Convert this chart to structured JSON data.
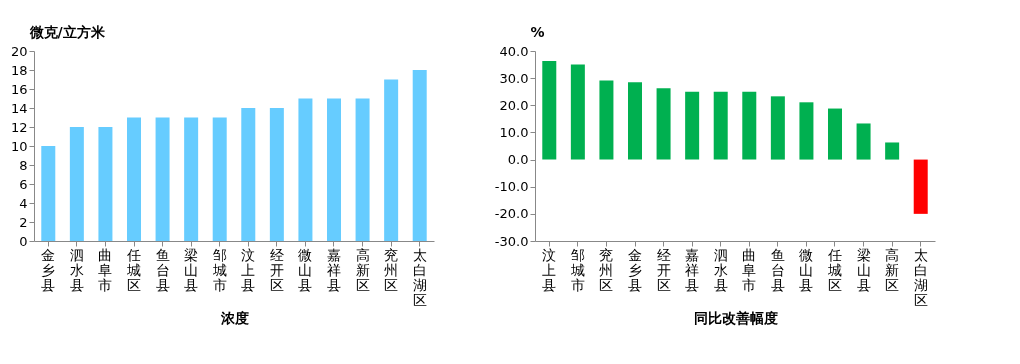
{
  "chart_data": [
    {
      "type": "bar",
      "ylabel": "微克/立方米",
      "xlabel": "浓度",
      "categories": [
        "金乡县",
        "泗水县",
        "曲阜市",
        "任城区",
        "鱼台县",
        "梁山县",
        "邹城市",
        "汶上县",
        "经开区",
        "微山县",
        "嘉祥县",
        "高新区",
        "兖州区",
        "太白湖区"
      ],
      "values": [
        10,
        12,
        12,
        13,
        13,
        13,
        13,
        14,
        14,
        15,
        15,
        15,
        17,
        18
      ],
      "color": "#66ccff",
      "ylim": [
        0,
        20
      ],
      "yticks": [
        0,
        2,
        4,
        6,
        8,
        10,
        12,
        14,
        16,
        18,
        20
      ],
      "grid": false,
      "legend": false
    },
    {
      "type": "bar",
      "ylabel": "%",
      "xlabel": "同比改善幅度",
      "categories": [
        "汶上县",
        "邹城市",
        "兖州区",
        "金乡县",
        "经开区",
        "嘉祥县",
        "泗水县",
        "曲阜市",
        "鱼台县",
        "微山县",
        "任城区",
        "梁山县",
        "高新区",
        "太白湖区"
      ],
      "values": [
        36.3,
        35.0,
        29.1,
        28.5,
        26.3,
        25.0,
        25.0,
        25.0,
        23.3,
        21.1,
        18.8,
        13.3,
        6.3,
        -20.0
      ],
      "colors": [
        "#00b050",
        "#00b050",
        "#00b050",
        "#00b050",
        "#00b050",
        "#00b050",
        "#00b050",
        "#00b050",
        "#00b050",
        "#00b050",
        "#00b050",
        "#00b050",
        "#00b050",
        "#ff0000"
      ],
      "ylim": [
        -30,
        40
      ],
      "yticks": [
        {
          "value": -30,
          "label": "-30.0"
        },
        {
          "value": -20,
          "label": "-20.0"
        },
        {
          "value": -10,
          "label": "-10.0"
        },
        {
          "value": 0,
          "label": "0.0"
        },
        {
          "value": 10,
          "label": "10.0"
        },
        {
          "value": 20,
          "label": "20.0"
        },
        {
          "value": 30,
          "label": "30.0"
        },
        {
          "value": 40,
          "label": "40.0"
        }
      ],
      "grid": false,
      "legend": false
    }
  ]
}
